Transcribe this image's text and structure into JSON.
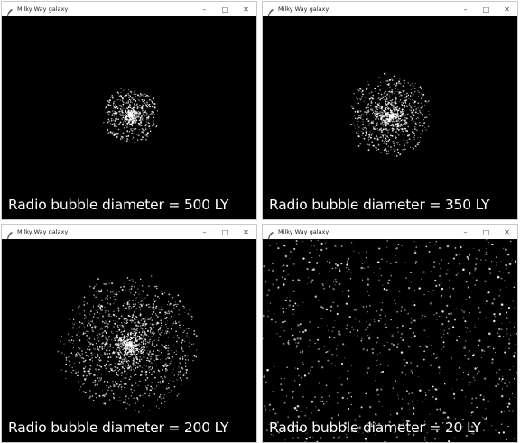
{
  "windows": [
    {
      "title": "Milky Way galaxy",
      "caption": "Radio bubble diameter = 500 LY"
    },
    {
      "title": "Milky Way galaxy",
      "caption": "Radio bubble diameter = 350 LY"
    },
    {
      "title": "Milky Way galaxy",
      "caption": "Radio bubble diameter = 200 LY"
    },
    {
      "title": "Milky Way galaxy",
      "caption": "Radio bubble diameter = 20 LY"
    }
  ],
  "controls": {
    "minimize": "–",
    "maximize": "□",
    "close": "✕"
  },
  "colors": {
    "background": "#000000",
    "stars": "#ffffff",
    "titlebar": "#ffffff"
  }
}
